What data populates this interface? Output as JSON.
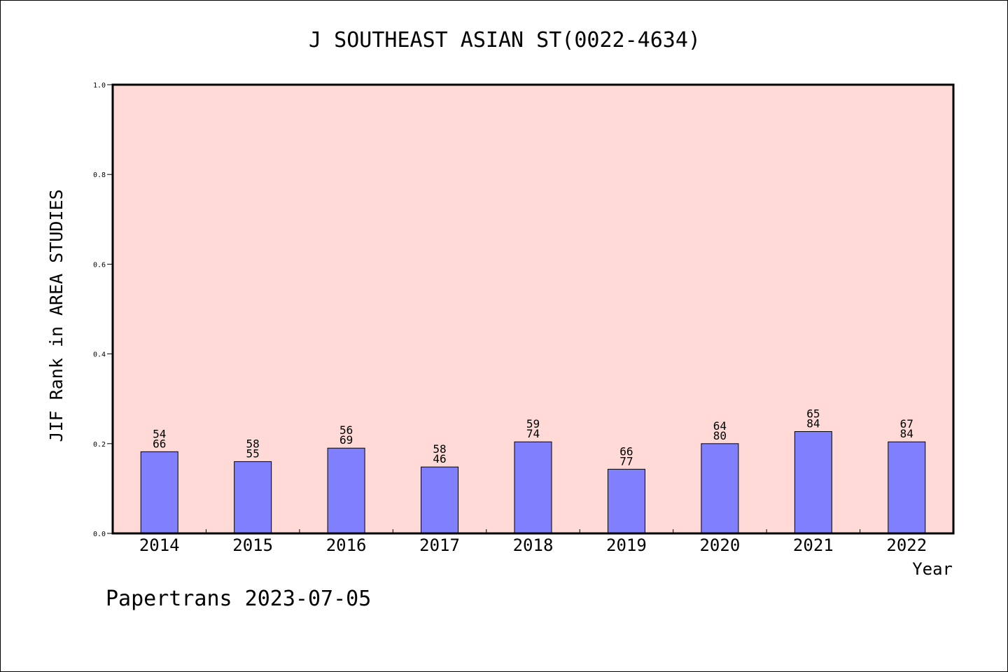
{
  "chart_data": {
    "type": "bar",
    "title": "J SOUTHEAST ASIAN ST(0022-4634)",
    "xlabel": "Year",
    "ylabel": "JIF Rank in AREA STUDIES",
    "ylim": [
      0,
      1.0
    ],
    "yticks": [
      "0.0",
      "0.2",
      "0.4",
      "0.6",
      "0.8",
      "1.0"
    ],
    "categories": [
      "2014",
      "2015",
      "2016",
      "2017",
      "2018",
      "2019",
      "2020",
      "2021",
      "2022"
    ],
    "values": [
      0.182,
      0.16,
      0.19,
      0.148,
      0.204,
      0.143,
      0.2,
      0.227,
      0.204
    ],
    "labels_top": [
      "54",
      "58",
      "56",
      "58",
      "59",
      "66",
      "64",
      "65",
      "67"
    ],
    "labels_bottom": [
      "66",
      "55",
      "69",
      "46",
      "74",
      "77",
      "80",
      "84",
      "84"
    ],
    "grid": false,
    "colors": {
      "plot_background": "#FFDAD6",
      "bar_fill": "#8080FF",
      "bar_stroke": "#000000"
    }
  },
  "footer": "Papertrans 2023-07-05"
}
